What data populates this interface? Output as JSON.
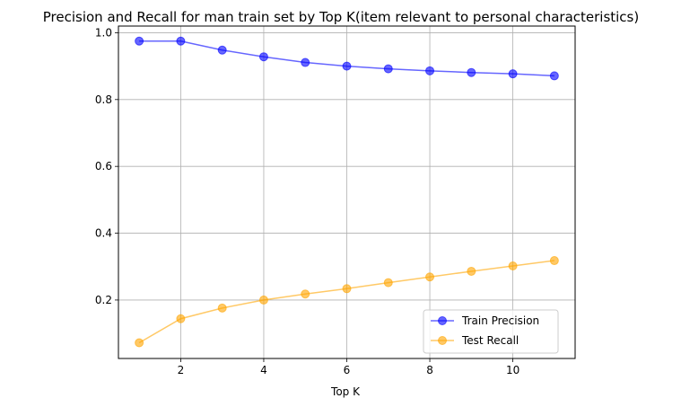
{
  "chart_data": {
    "type": "line",
    "title": "Precision and Recall for man train set by Top K(item relevant to personal characteristics)",
    "xlabel": "Top K",
    "ylabel": "",
    "xlim": [
      0.5,
      11.5
    ],
    "ylim": [
      0.025,
      1.02
    ],
    "xticks": [
      2,
      4,
      6,
      8,
      10
    ],
    "yticks": [
      0.2,
      0.4,
      0.6,
      0.8,
      1.0
    ],
    "ytick_labels": [
      "0.2",
      "0.4",
      "0.6",
      "0.8",
      "1.0"
    ],
    "grid": true,
    "legend_position": "lower-right",
    "x": [
      1,
      2,
      3,
      4,
      5,
      6,
      7,
      8,
      9,
      10,
      11
    ],
    "series": [
      {
        "name": "Train Precision",
        "color": "#0000ff",
        "values": [
          0.975,
          0.975,
          0.948,
          0.928,
          0.911,
          0.9,
          0.892,
          0.886,
          0.881,
          0.877,
          0.871
        ]
      },
      {
        "name": "Test Recall",
        "color": "#ffa500",
        "values": [
          0.072,
          0.144,
          0.176,
          0.2,
          0.218,
          0.234,
          0.252,
          0.269,
          0.286,
          0.302,
          0.318
        ]
      }
    ]
  }
}
